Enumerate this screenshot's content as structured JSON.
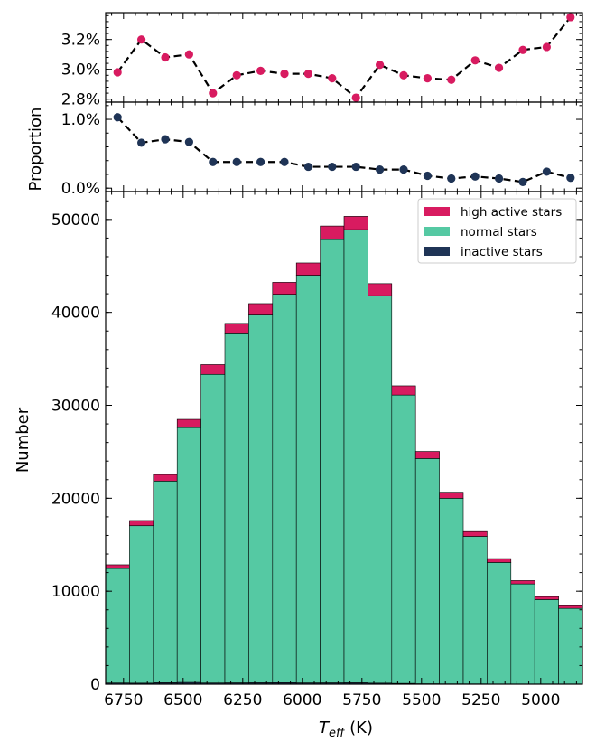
{
  "chart_data": [
    {
      "type": "line",
      "panel": "top",
      "series": [
        {
          "name": "high active proportion",
          "color": "#d81b60",
          "x": [
            6775,
            6675,
            6575,
            6475,
            6375,
            6275,
            6175,
            6075,
            5975,
            5875,
            5775,
            5675,
            5575,
            5475,
            5375,
            5275,
            5175,
            5075,
            4975,
            4875
          ],
          "values": [
            2.98,
            3.2,
            3.08,
            3.1,
            2.84,
            2.96,
            2.99,
            2.97,
            2.97,
            2.94,
            2.81,
            3.03,
            2.96,
            2.94,
            2.93,
            3.06,
            3.01,
            3.13,
            3.15,
            3.35
          ]
        }
      ],
      "ylim": [
        2.78,
        3.38
      ],
      "yticks": [
        2.8,
        3.0,
        3.2
      ],
      "ytick_labels": [
        "2.8%",
        "3.0%",
        "3.2%"
      ]
    },
    {
      "type": "line",
      "panel": "middle",
      "series": [
        {
          "name": "inactive proportion",
          "color": "#1f3456",
          "x": [
            6775,
            6675,
            6575,
            6475,
            6375,
            6275,
            6175,
            6075,
            5975,
            5875,
            5775,
            5675,
            5575,
            5475,
            5375,
            5275,
            5175,
            5075,
            4975,
            4875
          ],
          "values": [
            1.03,
            0.66,
            0.71,
            0.67,
            0.38,
            0.38,
            0.38,
            0.38,
            0.31,
            0.31,
            0.31,
            0.27,
            0.27,
            0.18,
            0.14,
            0.17,
            0.14,
            0.09,
            0.24,
            0.15
          ]
        }
      ],
      "ylim": [
        -0.05,
        1.25
      ],
      "yticks": [
        0.0,
        1.0
      ],
      "ytick_labels": [
        "0.0%",
        "1.0%"
      ]
    },
    {
      "type": "bar",
      "panel": "bottom",
      "stacked": true,
      "bin_edges": [
        6825,
        6725,
        6625,
        6525,
        6425,
        6325,
        6225,
        6125,
        6025,
        5925,
        5825,
        5725,
        5625,
        5525,
        5425,
        5325,
        5225,
        5125,
        5025,
        4925,
        4825
      ],
      "series": [
        {
          "name": "inactive stars",
          "color": "#1f3456",
          "values": [
            130,
            115,
            160,
            190,
            130,
            145,
            155,
            165,
            140,
            145,
            155,
            115,
            85,
            45,
            30,
            28,
            18,
            10,
            22,
            13
          ]
        },
        {
          "name": "normal stars",
          "color": "#55c9a3",
          "values": [
            12320,
            16930,
            21690,
            27420,
            33200,
            37550,
            39560,
            41780,
            43860,
            47700,
            48750,
            41680,
            31020,
            24230,
            19970,
            15870,
            13070,
            10770,
            9078,
            8137
          ]
        },
        {
          "name": "high active stars",
          "color": "#d81b60",
          "values": [
            390,
            560,
            700,
            880,
            1050,
            1120,
            1230,
            1290,
            1320,
            1450,
            1430,
            1300,
            990,
            760,
            650,
            520,
            420,
            360,
            320,
            290
          ]
        }
      ],
      "ylim": [
        0,
        53000
      ],
      "yticks": [
        0,
        10000,
        20000,
        30000,
        40000,
        50000
      ],
      "ytick_labels": [
        "0",
        "10000",
        "20000",
        "30000",
        "40000",
        "50000"
      ],
      "xlim": [
        6825,
        4825
      ],
      "xticks": [
        6750,
        6500,
        6250,
        6000,
        5750,
        5500,
        5250,
        5000
      ],
      "xtick_labels": [
        "6750",
        "6500",
        "6250",
        "6000",
        "5750",
        "5500",
        "5250",
        "5000"
      ],
      "legend_position": "top-right",
      "legend": [
        "high active stars",
        "normal stars",
        "inactive stars"
      ]
    }
  ],
  "labels": {
    "ylabel_top": "Proportion",
    "ylabel_bottom": "Number",
    "xlabel_main": "T",
    "xlabel_sub": "eff",
    "xlabel_unit": " (K)"
  }
}
